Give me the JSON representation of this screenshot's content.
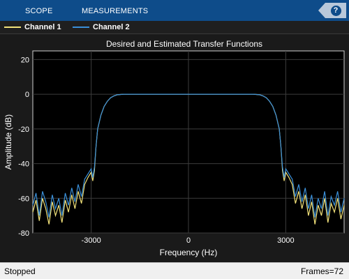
{
  "toolstrip": {
    "tabs": [
      {
        "label": "SCOPE"
      },
      {
        "label": "MEASUREMENTS"
      }
    ],
    "help_label": "?"
  },
  "legend": {
    "items": [
      {
        "label": "Channel 1",
        "color": "#f2e27a"
      },
      {
        "label": "Channel 2",
        "color": "#3a8fd8"
      }
    ]
  },
  "status": {
    "left": "Stopped",
    "right": "Frames=72"
  },
  "chart_data": {
    "type": "line",
    "title": "Desired and Estimated Transfer Functions",
    "xlabel": "Frequency (Hz)",
    "ylabel": "Amplitude (dB)",
    "xlim": [
      -4800,
      4800
    ],
    "ylim": [
      -80,
      25
    ],
    "x_ticks": [
      -3000,
      0,
      3000
    ],
    "x_tick_labels": [
      "-3000",
      "0",
      "3000"
    ],
    "y_ticks": [
      20,
      0,
      -20,
      -40,
      -60,
      -80
    ],
    "y_tick_labels": [
      "20",
      "0",
      "-20",
      "-40",
      "-60",
      "-80"
    ],
    "grid": true,
    "series": [
      {
        "name": "Channel 1",
        "color": "#f2e27a",
        "points": [
          [
            -4800,
            -68
          ],
          [
            -4700,
            -61
          ],
          [
            -4600,
            -73
          ],
          [
            -4500,
            -60
          ],
          [
            -4400,
            -66
          ],
          [
            -4300,
            -75
          ],
          [
            -4200,
            -62
          ],
          [
            -4100,
            -70
          ],
          [
            -4000,
            -64
          ],
          [
            -3900,
            -74
          ],
          [
            -3800,
            -61
          ],
          [
            -3700,
            -68
          ],
          [
            -3600,
            -58
          ],
          [
            -3500,
            -66
          ],
          [
            -3400,
            -56
          ],
          [
            -3300,
            -63
          ],
          [
            -3200,
            -52
          ],
          [
            -3100,
            -48
          ],
          [
            -3000,
            -45
          ],
          [
            -2950,
            -50
          ],
          [
            -2900,
            -44
          ],
          [
            -2850,
            -30
          ],
          [
            -2800,
            -20
          ],
          [
            -2700,
            -12
          ],
          [
            -2600,
            -7
          ],
          [
            -2500,
            -4
          ],
          [
            -2400,
            -2
          ],
          [
            -2300,
            -1
          ],
          [
            -2200,
            -0.3
          ],
          [
            -2000,
            0
          ],
          [
            -1500,
            0
          ],
          [
            -1000,
            0
          ],
          [
            -500,
            0
          ],
          [
            0,
            0
          ],
          [
            500,
            0
          ],
          [
            1000,
            0
          ],
          [
            1500,
            0
          ],
          [
            2000,
            0
          ],
          [
            2200,
            -0.3
          ],
          [
            2300,
            -1
          ],
          [
            2400,
            -2
          ],
          [
            2500,
            -4
          ],
          [
            2600,
            -7
          ],
          [
            2700,
            -12
          ],
          [
            2800,
            -20
          ],
          [
            2850,
            -30
          ],
          [
            2900,
            -44
          ],
          [
            2950,
            -50
          ],
          [
            3000,
            -45
          ],
          [
            3100,
            -48
          ],
          [
            3200,
            -52
          ],
          [
            3300,
            -63
          ],
          [
            3400,
            -56
          ],
          [
            3500,
            -66
          ],
          [
            3600,
            -58
          ],
          [
            3700,
            -70
          ],
          [
            3800,
            -62
          ],
          [
            3900,
            -75
          ],
          [
            4000,
            -64
          ],
          [
            4100,
            -70
          ],
          [
            4200,
            -60
          ],
          [
            4300,
            -74
          ],
          [
            4400,
            -63
          ],
          [
            4500,
            -68
          ],
          [
            4600,
            -60
          ],
          [
            4700,
            -72
          ],
          [
            4800,
            -64
          ]
        ]
      },
      {
        "name": "Channel 2",
        "color": "#3a8fd8",
        "points": [
          [
            -4800,
            -64
          ],
          [
            -4700,
            -57
          ],
          [
            -4600,
            -70
          ],
          [
            -4500,
            -56
          ],
          [
            -4400,
            -62
          ],
          [
            -4300,
            -71
          ],
          [
            -4200,
            -58
          ],
          [
            -4100,
            -66
          ],
          [
            -4000,
            -60
          ],
          [
            -3900,
            -70
          ],
          [
            -3800,
            -57
          ],
          [
            -3700,
            -64
          ],
          [
            -3600,
            -54
          ],
          [
            -3500,
            -62
          ],
          [
            -3400,
            -52
          ],
          [
            -3300,
            -59
          ],
          [
            -3200,
            -49
          ],
          [
            -3100,
            -46
          ],
          [
            -3000,
            -43
          ],
          [
            -2950,
            -48
          ],
          [
            -2900,
            -42
          ],
          [
            -2850,
            -30
          ],
          [
            -2800,
            -20
          ],
          [
            -2700,
            -12
          ],
          [
            -2600,
            -7
          ],
          [
            -2500,
            -4
          ],
          [
            -2400,
            -2
          ],
          [
            -2300,
            -1
          ],
          [
            -2200,
            -0.3
          ],
          [
            -2000,
            0
          ],
          [
            -1500,
            0
          ],
          [
            -1000,
            0
          ],
          [
            -500,
            0
          ],
          [
            0,
            0
          ],
          [
            500,
            0
          ],
          [
            1000,
            0
          ],
          [
            1500,
            0
          ],
          [
            2000,
            0
          ],
          [
            2200,
            -0.3
          ],
          [
            2300,
            -1
          ],
          [
            2400,
            -2
          ],
          [
            2500,
            -4
          ],
          [
            2600,
            -7
          ],
          [
            2700,
            -12
          ],
          [
            2800,
            -20
          ],
          [
            2850,
            -30
          ],
          [
            2900,
            -42
          ],
          [
            2950,
            -48
          ],
          [
            3000,
            -43
          ],
          [
            3100,
            -46
          ],
          [
            3200,
            -49
          ],
          [
            3300,
            -59
          ],
          [
            3400,
            -52
          ],
          [
            3500,
            -62
          ],
          [
            3600,
            -54
          ],
          [
            3700,
            -66
          ],
          [
            3800,
            -58
          ],
          [
            3900,
            -71
          ],
          [
            4000,
            -60
          ],
          [
            4100,
            -66
          ],
          [
            4200,
            -56
          ],
          [
            4300,
            -70
          ],
          [
            4400,
            -59
          ],
          [
            4500,
            -64
          ],
          [
            4600,
            -56
          ],
          [
            4700,
            -68
          ],
          [
            4800,
            -60
          ]
        ]
      }
    ]
  }
}
